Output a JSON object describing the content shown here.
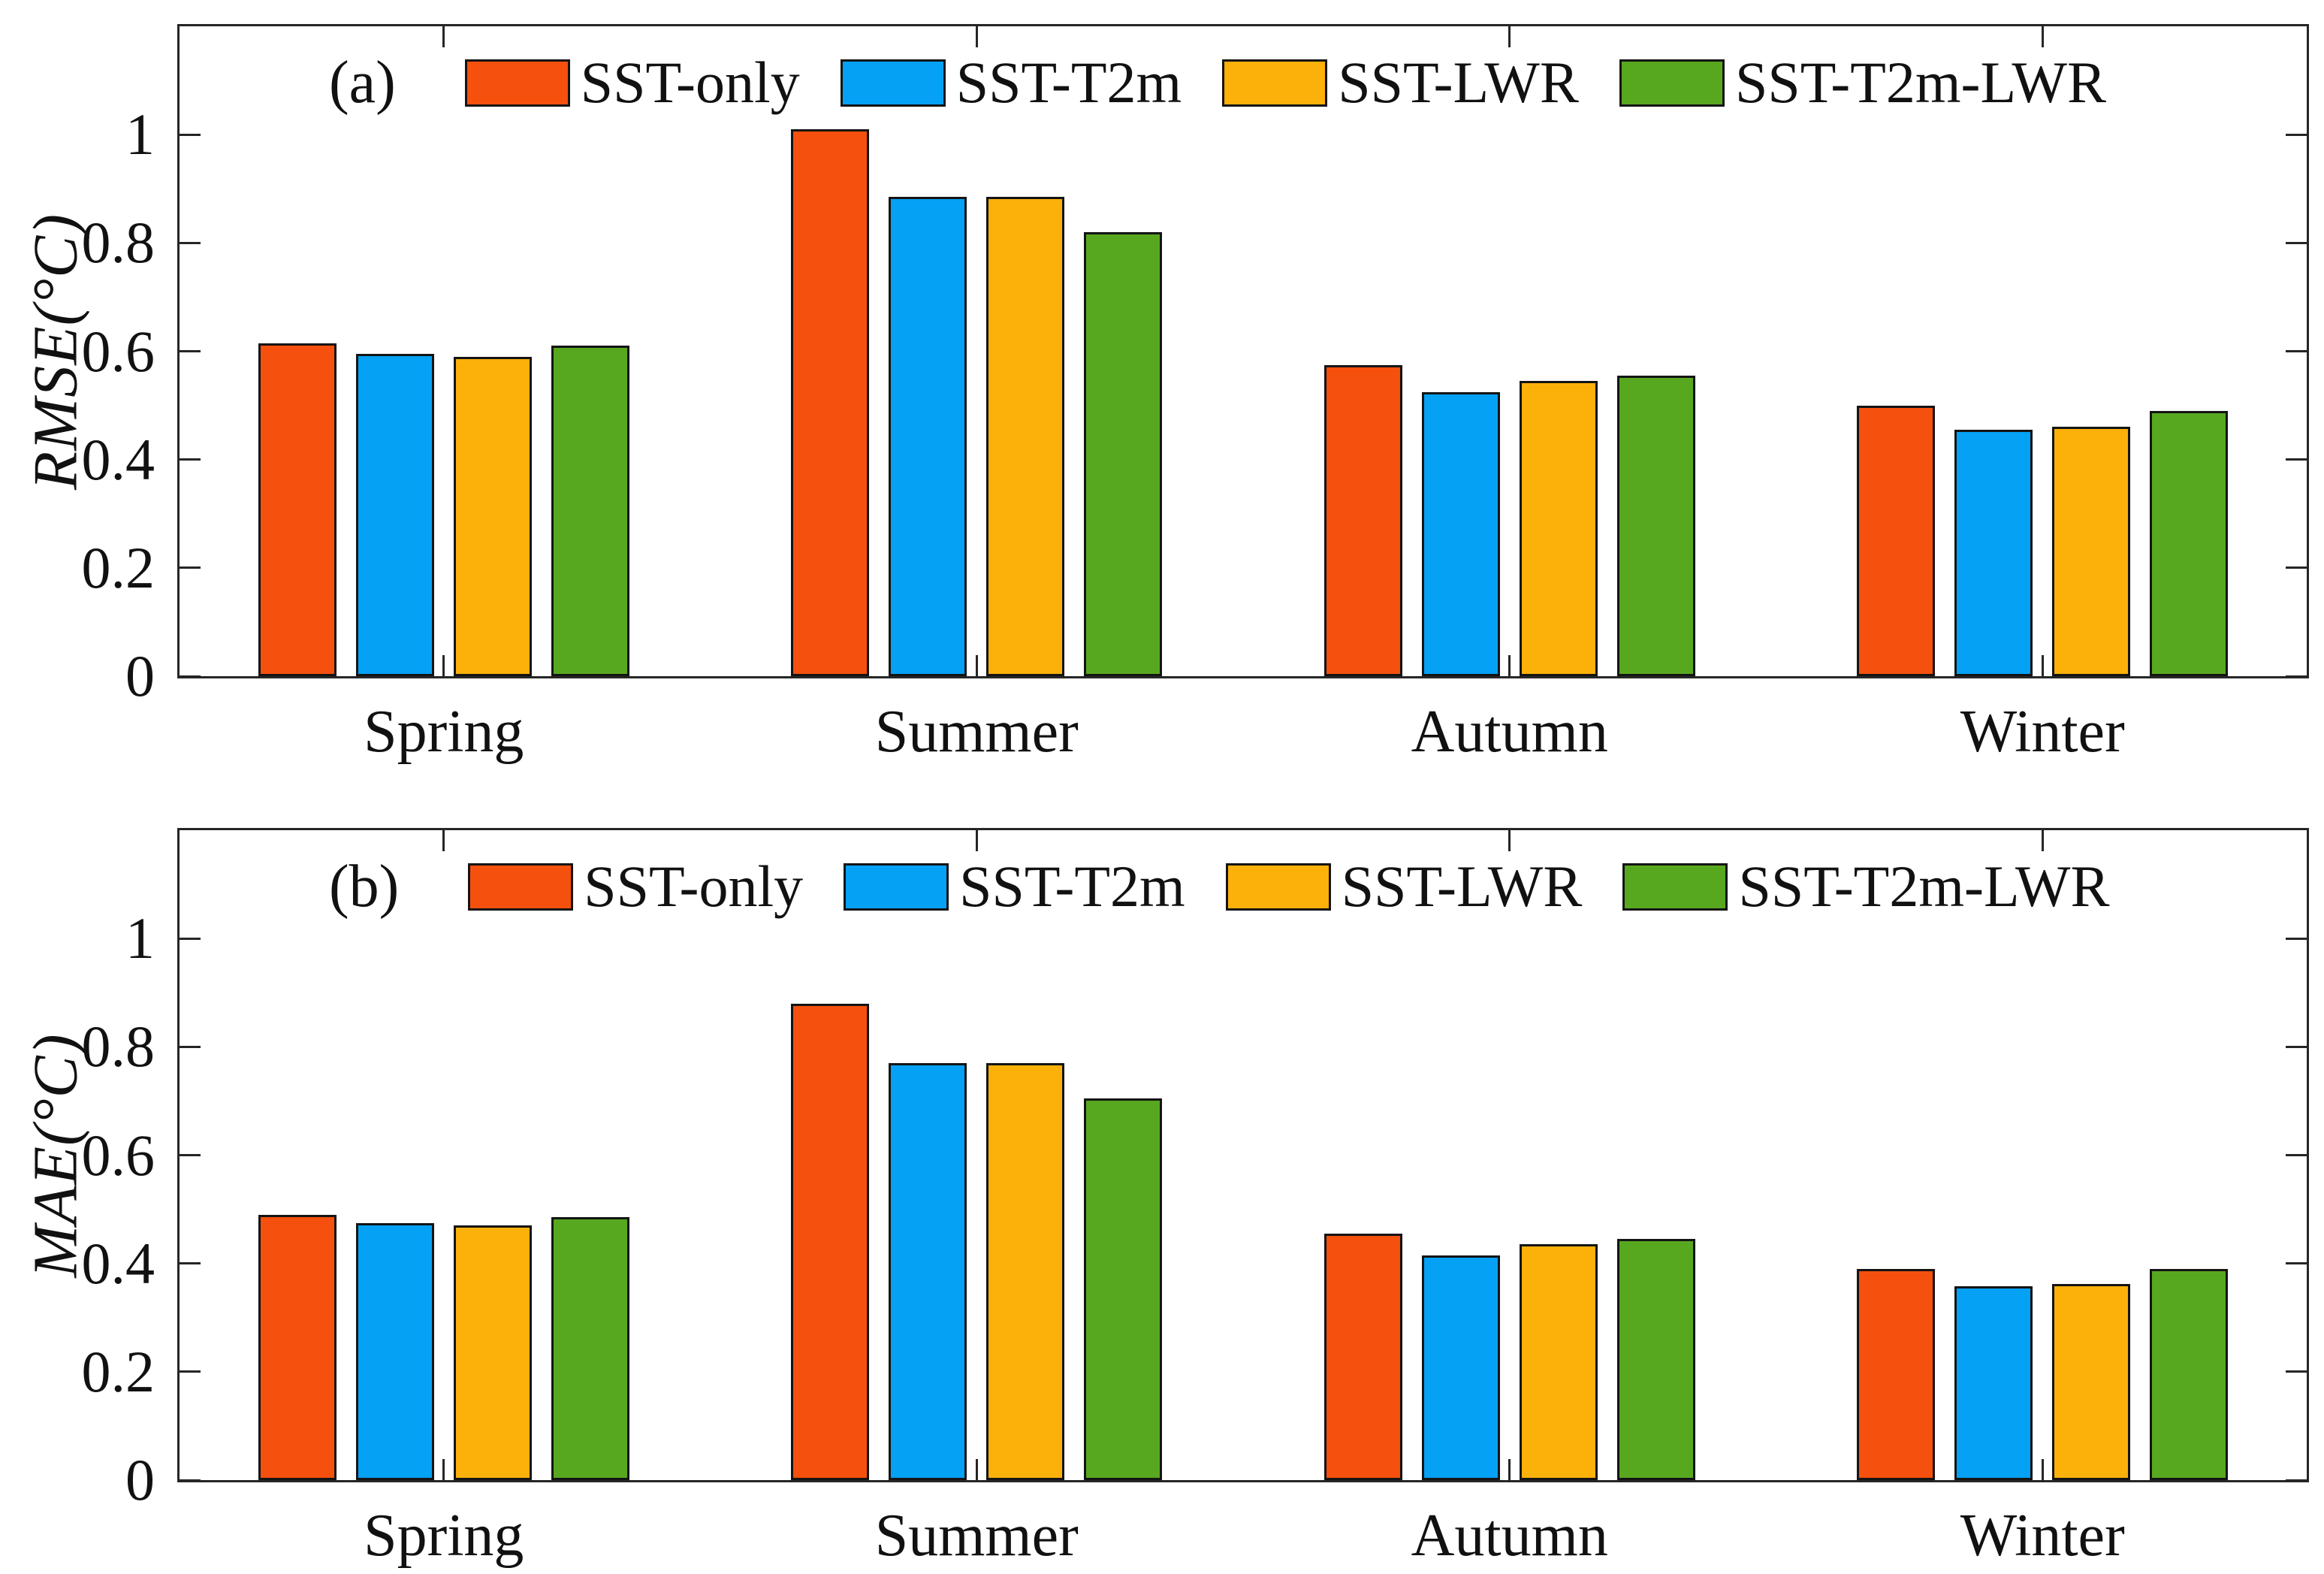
{
  "figure": {
    "background": "#ffffff",
    "axis_color": "#262626",
    "bar_edge_color": "#141414",
    "text_color": "#111111"
  },
  "chart_data": [
    {
      "id": "a",
      "type": "bar",
      "panel_label": "(a)",
      "ylabel": "RMSE(°C)",
      "xlabel": "",
      "categories": [
        "Spring",
        "Summer",
        "Autumn",
        "Winter"
      ],
      "series": [
        {
          "name": "SST-only",
          "color": "#F5500D",
          "values": [
            0.615,
            1.01,
            0.575,
            0.5
          ]
        },
        {
          "name": "SST-T2m",
          "color": "#05A1F5",
          "values": [
            0.595,
            0.885,
            0.525,
            0.455
          ]
        },
        {
          "name": "SST-LWR",
          "color": "#FBB00A",
          "values": [
            0.59,
            0.885,
            0.545,
            0.46
          ]
        },
        {
          "name": "SST-T2m-LWR",
          "color": "#57A81F",
          "values": [
            0.61,
            0.82,
            0.555,
            0.49
          ]
        }
      ],
      "ylim": [
        0,
        1.2
      ],
      "yticks": [
        0,
        0.2,
        0.4,
        0.6,
        0.8,
        1
      ],
      "ytick_labels": [
        "0",
        "0.2",
        "0.4",
        "0.6",
        "0.8",
        "1"
      ],
      "grid": false,
      "legend_position": "inside-top"
    },
    {
      "id": "b",
      "type": "bar",
      "panel_label": "(b)",
      "ylabel": "MAE(°C)",
      "xlabel": "",
      "categories": [
        "Spring",
        "Summer",
        "Autumn",
        "Winter"
      ],
      "series": [
        {
          "name": "SST-only",
          "color": "#F5500D",
          "values": [
            0.49,
            0.88,
            0.455,
            0.39
          ]
        },
        {
          "name": "SST-T2m",
          "color": "#05A1F5",
          "values": [
            0.475,
            0.77,
            0.415,
            0.358
          ]
        },
        {
          "name": "SST-LWR",
          "color": "#FBB00A",
          "values": [
            0.47,
            0.77,
            0.435,
            0.362
          ]
        },
        {
          "name": "SST-T2m-LWR",
          "color": "#57A81F",
          "values": [
            0.485,
            0.705,
            0.445,
            0.39
          ]
        }
      ],
      "ylim": [
        0,
        1.2
      ],
      "yticks": [
        0,
        0.2,
        0.4,
        0.6,
        0.8,
        1
      ],
      "ytick_labels": [
        "0",
        "0.2",
        "0.4",
        "0.6",
        "0.8",
        "1"
      ],
      "grid": false,
      "legend_position": "inside-top"
    }
  ]
}
